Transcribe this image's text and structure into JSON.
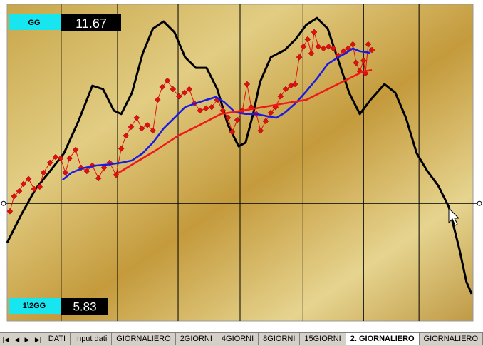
{
  "chart_data": {
    "type": "line",
    "xlim": [
      0,
      100
    ],
    "ylim": [
      0,
      100
    ],
    "xticks": [
      11.6,
      23.7,
      36.7,
      50,
      63.5,
      76.5,
      88.4
    ],
    "yticks": [
      37
    ],
    "grid": true,
    "annotations": [
      {
        "label": "GG",
        "value": 11.67
      },
      {
        "label": "1\\2GG",
        "value": 5.83
      }
    ],
    "series": [
      {
        "color": "#000000",
        "x": [
          0,
          3.1,
          6.1,
          9.2,
          12.2,
          15.3,
          18.3,
          20.6,
          22.9,
          24.5,
          26.8,
          29.1,
          31.3,
          33.6,
          35.9,
          38.2,
          40.5,
          42.8,
          45.1,
          47.4,
          49.7,
          51.2,
          52.8,
          54.3,
          56.6,
          59.6,
          61.9,
          64.2,
          66.5,
          68.8,
          71.1,
          73.4,
          75.7,
          78,
          81,
          83.3,
          85.6,
          87.9,
          90.2,
          92.5,
          94.8,
          97.1,
          98.6,
          99.7
        ],
        "values": [
          24.5,
          33.6,
          41.6,
          47.3,
          53,
          63.2,
          74.5,
          73.4,
          66.6,
          65.5,
          72.3,
          84.8,
          92.7,
          95,
          91.6,
          83.6,
          80.2,
          80.2,
          73.4,
          62,
          55.2,
          56.4,
          65.5,
          75.7,
          83.6,
          85.9,
          89.3,
          93.9,
          96.1,
          92.7,
          82.5,
          72.3,
          65.5,
          70,
          75,
          72.3,
          64.3,
          53,
          47.3,
          42.7,
          35.9,
          22.3,
          12,
          8.2
        ]
      },
      {
        "color": "#e01010",
        "marker": "diamond",
        "x": [
          0.6,
          1.5,
          2.6,
          3.5,
          4.6,
          5.8,
          7,
          7.8,
          9.2,
          10.4,
          11.5,
          12.5,
          13.4,
          14.7,
          15.9,
          17.1,
          18.3,
          19.6,
          20.8,
          22,
          23.4,
          24.5,
          25.5,
          26.6,
          27.8,
          28.9,
          30.1,
          31.3,
          32.3,
          33.3,
          34.4,
          35.6,
          36.9,
          38.1,
          39.1,
          40.2,
          41.4,
          42.7,
          43.9,
          45.1,
          46.3,
          47.4,
          48.3,
          49.4,
          50.5,
          51.5,
          52.4,
          53.5,
          54.4,
          55.5,
          56.6,
          57.6,
          58.7,
          59.8,
          60.9,
          61.8,
          62.7,
          63.6,
          64.5,
          65.3,
          65.9,
          66.8,
          67.9,
          69,
          70,
          71.1,
          72.2,
          73.2,
          74.2,
          74.9,
          75.7,
          76.5,
          76.9,
          77.5,
          78.3
        ],
        "values": [
          34.5,
          39.3,
          40.9,
          43.2,
          44.8,
          41.6,
          42.3,
          46.8,
          50,
          51.8,
          51.4,
          46.8,
          51.4,
          54.1,
          48.4,
          47.3,
          49.1,
          45,
          48.4,
          50,
          46.1,
          54.5,
          58.6,
          61.4,
          64.3,
          60.9,
          62,
          60.2,
          70,
          74.1,
          76.1,
          73.4,
          71.1,
          72.3,
          73.4,
          68.9,
          66.6,
          67.3,
          67.7,
          70,
          66.6,
          64.3,
          59.8,
          63.6,
          66.6,
          75,
          67.7,
          65.5,
          60.2,
          63.2,
          65.9,
          67.7,
          71.1,
          73.4,
          74.5,
          75,
          83.6,
          87,
          89.3,
          84.8,
          91.6,
          87,
          86.4,
          87,
          86.4,
          84.1,
          85.5,
          86.4,
          87.7,
          81.8,
          79.1,
          82.5,
          78.4,
          87.7,
          85.9
        ]
      },
      {
        "color": "#1a1ae6",
        "x": [
          11.9,
          13.8,
          16.1,
          19.1,
          22.2,
          24.5,
          26.8,
          29.1,
          31.3,
          33.6,
          35.9,
          38.2,
          40.5,
          42.8,
          44.8,
          46.6,
          48.9,
          51.2,
          53.5,
          55.8,
          57.8,
          59.6,
          61.9,
          64.2,
          66.5,
          68.8,
          71.1,
          72.6,
          74.2,
          75.7,
          78
        ],
        "values": [
          44.5,
          46.8,
          48.2,
          49.1,
          49.5,
          50,
          50.7,
          53,
          56.4,
          60.9,
          64.3,
          67.7,
          68.9,
          70,
          70.9,
          69.3,
          66.1,
          65.5,
          65.5,
          64.8,
          64.3,
          65.9,
          68.9,
          72.7,
          76.8,
          81.4,
          83.6,
          84.8,
          86.4,
          85.5,
          85
        ]
      },
      {
        "color": "#f01818",
        "x": [
          23.7,
          27.5,
          32.1,
          36.7,
          41.3,
          45.9,
          50.5,
          55,
          59.6,
          64.2,
          68.8,
          73.4,
          76.5,
          78.3
        ],
        "values": [
          46.6,
          50,
          54.1,
          58.6,
          62,
          65.5,
          66.6,
          67.7,
          68.9,
          70,
          73.4,
          76.8,
          79.1,
          79.5
        ]
      }
    ]
  },
  "sheet_tabs": [
    "DATI",
    "Input dati",
    "GIORNALIERO",
    "2GIORNI",
    "4GIORNI",
    "8GIORNI",
    "15GIORNI",
    "2. GIORNALIERO",
    "GIORNALIERO"
  ],
  "active_tab": 7
}
